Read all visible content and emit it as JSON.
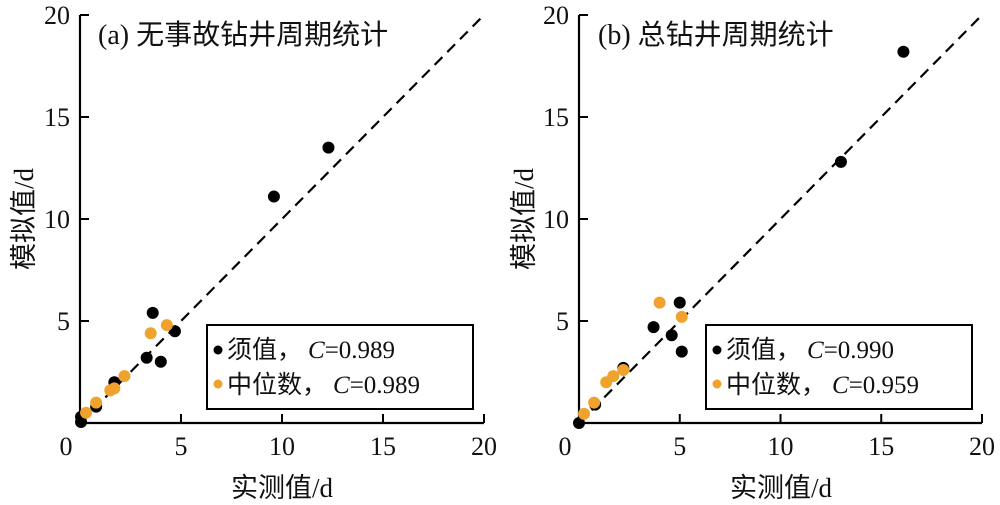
{
  "chart_data": [
    {
      "type": "scatter",
      "title": "(a) 无事故钻井周期统计",
      "xlabel": "实测值/d",
      "ylabel": "模拟值/d",
      "xlim": [
        0,
        20
      ],
      "ylim": [
        0,
        20
      ],
      "xticks": [
        "0",
        "5",
        "10",
        "15",
        "20"
      ],
      "yticks": [
        "5",
        "10",
        "15",
        "20"
      ],
      "grid": false,
      "reference_line": "y = x (dashed)",
      "legend_position": "bottom-right",
      "series": [
        {
          "name": "须值",
          "legend_prefix": "须值，",
          "legend_c_label": "C",
          "legend_c_value": "=0.989",
          "color": "#000000",
          "points": [
            [
              12.3,
              13.5
            ],
            [
              9.6,
              11.1
            ],
            [
              3.6,
              5.4
            ],
            [
              4.7,
              4.5
            ],
            [
              3.3,
              3.2
            ],
            [
              4.0,
              3.0
            ],
            [
              1.7,
              2.0
            ],
            [
              0.8,
              0.8
            ],
            [
              0.05,
              0.05
            ],
            [
              0.05,
              0.3
            ]
          ]
        },
        {
          "name": "中位数",
          "legend_prefix": "中位数，",
          "legend_c_label": "C",
          "legend_c_value": "=0.989",
          "color": "#F0A22E",
          "points": [
            [
              4.3,
              4.8
            ],
            [
              3.5,
              4.4
            ],
            [
              2.2,
              2.3
            ],
            [
              1.7,
              1.7
            ],
            [
              1.5,
              1.6
            ],
            [
              0.8,
              1.0
            ],
            [
              0.3,
              0.5
            ]
          ]
        }
      ]
    },
    {
      "type": "scatter",
      "title": "(b) 总钻井周期统计",
      "xlabel": "实测值/d",
      "ylabel": "模拟值/d",
      "xlim": [
        0,
        20
      ],
      "ylim": [
        0,
        20
      ],
      "xticks": [
        "0",
        "5",
        "10",
        "15",
        "20"
      ],
      "yticks": [
        "5",
        "10",
        "15",
        "20"
      ],
      "grid": false,
      "reference_line": "y = x (dashed)",
      "legend_position": "bottom-right",
      "series": [
        {
          "name": "须值",
          "legend_prefix": "须值，",
          "legend_c_label": "C",
          "legend_c_value": "=0.990",
          "color": "#000000",
          "points": [
            [
              16.1,
              18.2
            ],
            [
              13.0,
              12.8
            ],
            [
              5.0,
              5.9
            ],
            [
              3.7,
              4.7
            ],
            [
              4.6,
              4.3
            ],
            [
              5.1,
              3.5
            ],
            [
              2.2,
              2.7
            ],
            [
              0.8,
              0.9
            ],
            [
              0.0,
              0.0
            ]
          ]
        },
        {
          "name": "中位数",
          "legend_prefix": "中位数，",
          "legend_c_label": "C",
          "legend_c_value": "=0.959",
          "color": "#F0A22E",
          "points": [
            [
              4.0,
              5.9
            ],
            [
              5.1,
              5.2
            ],
            [
              2.2,
              2.6
            ],
            [
              1.7,
              2.3
            ],
            [
              1.35,
              2.0
            ],
            [
              0.75,
              1.0
            ],
            [
              0.25,
              0.45
            ]
          ]
        }
      ]
    }
  ]
}
